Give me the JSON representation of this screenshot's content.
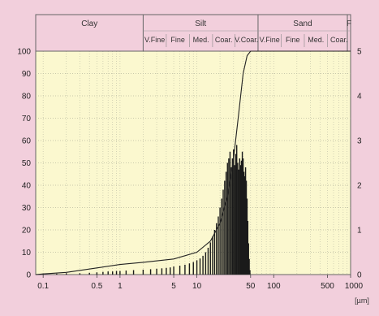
{
  "chart_data": {
    "type": "bar",
    "title": "",
    "x_scale": "log",
    "x_range": [
      0.08,
      1000
    ],
    "x_unit": "[µm]",
    "left_axis_ticks": [
      0,
      10,
      20,
      30,
      40,
      50,
      60,
      70,
      80,
      90,
      100
    ],
    "right_axis_ticks": [
      0,
      1,
      2,
      3,
      4,
      5
    ],
    "x_tick_labels": [
      "0.1",
      "0.5",
      "1",
      "5",
      "10",
      "50",
      "100",
      "500",
      "1000"
    ],
    "grid": true,
    "header_bands": [
      {
        "name": "Clay",
        "sub": []
      },
      {
        "name": "Silt",
        "sub": [
          "V.Fine",
          "Fine",
          "Med.",
          "Coar.",
          "V.Coar."
        ]
      },
      {
        "name": "Sand",
        "sub": [
          "V.Fine",
          "Fine",
          "Med.",
          "Coar."
        ]
      },
      {
        "name": "F",
        "sub": []
      }
    ],
    "series": [
      {
        "type": "bar",
        "axis": "right",
        "x": [
          0.1,
          0.15,
          0.2,
          0.3,
          0.4,
          0.5,
          0.6,
          0.7,
          0.8,
          0.9,
          1.0,
          1.2,
          1.5,
          2.0,
          2.5,
          3.0,
          3.5,
          4.0,
          4.5,
          5.0,
          6.0,
          7.0,
          8.0,
          9.0,
          10,
          11,
          12,
          13,
          14,
          15,
          16,
          17,
          18,
          19,
          20,
          21,
          22,
          23,
          24,
          25,
          26,
          27,
          28,
          29,
          30,
          31,
          32,
          33,
          34,
          35,
          36,
          37,
          38,
          39,
          40,
          41,
          42,
          43,
          44,
          45,
          46,
          47,
          48,
          49,
          50
        ],
        "values": [
          0.02,
          0.02,
          0.03,
          0.03,
          0.04,
          0.05,
          0.06,
          0.07,
          0.07,
          0.08,
          0.08,
          0.09,
          0.1,
          0.11,
          0.12,
          0.13,
          0.14,
          0.15,
          0.16,
          0.18,
          0.2,
          0.22,
          0.25,
          0.28,
          0.32,
          0.36,
          0.42,
          0.5,
          0.6,
          0.72,
          0.85,
          1.0,
          1.15,
          1.3,
          1.5,
          1.7,
          1.9,
          2.1,
          2.3,
          2.5,
          2.6,
          2.75,
          2.4,
          2.6,
          2.8,
          2.45,
          2.7,
          2.9,
          2.5,
          2.35,
          2.6,
          2.45,
          2.55,
          2.75,
          2.6,
          2.3,
          2.2,
          2.4,
          2.1,
          1.7,
          1.2,
          0.7,
          0.35,
          0.1,
          0.0
        ]
      },
      {
        "type": "line",
        "axis": "left",
        "x": [
          0.08,
          0.1,
          0.2,
          0.5,
          1,
          2,
          5,
          10,
          15,
          20,
          25,
          30,
          35,
          40,
          45,
          50,
          60,
          100,
          1000
        ],
        "values": [
          0,
          0.3,
          1,
          3,
          4.5,
          5.5,
          7,
          10,
          15,
          23,
          35,
          52,
          72,
          90,
          98,
          100,
          100,
          100,
          100
        ]
      }
    ]
  }
}
